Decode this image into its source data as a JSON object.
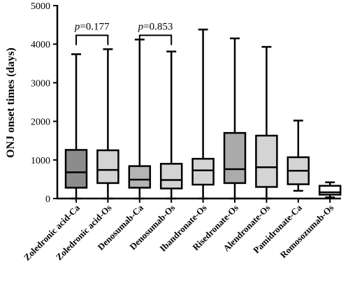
{
  "chart_data": {
    "type": "boxplot",
    "ylabel": "ONJ onset times (days)",
    "ylim": [
      0,
      5000
    ],
    "yticks": [
      0,
      1000,
      2000,
      3000,
      4000,
      5000
    ],
    "categories": [
      "Zoledronic acid-Ca",
      "Zoledronic acid-Os",
      "Denosumab-Ca",
      "Denosumab-Os",
      "Ibandronate-Os",
      "Risedronate-Os",
      "Alendronate-Os",
      "Pamidronate-Ca",
      "Romosozumab-Os"
    ],
    "boxes": [
      {
        "min": 0,
        "q1": 280,
        "median": 680,
        "q3": 1260,
        "max": 3740,
        "fill": "#8c8c8c"
      },
      {
        "min": 0,
        "q1": 400,
        "median": 740,
        "q3": 1250,
        "max": 3870,
        "fill": "#d4d4d4"
      },
      {
        "min": 0,
        "q1": 280,
        "median": 490,
        "q3": 840,
        "max": 4120,
        "fill": "#b5b5b5"
      },
      {
        "min": 0,
        "q1": 260,
        "median": 480,
        "q3": 900,
        "max": 3810,
        "fill": "#d4d4d4"
      },
      {
        "min": 0,
        "q1": 360,
        "median": 730,
        "q3": 1030,
        "max": 4380,
        "fill": "#d4d4d4"
      },
      {
        "min": 0,
        "q1": 400,
        "median": 760,
        "q3": 1700,
        "max": 4150,
        "fill": "#ababab"
      },
      {
        "min": 0,
        "q1": 300,
        "median": 810,
        "q3": 1630,
        "max": 3930,
        "fill": "#d4d4d4"
      },
      {
        "min": 200,
        "q1": 370,
        "median": 720,
        "q3": 1070,
        "max": 2020,
        "fill": "#d4d4d4"
      },
      {
        "min": 30,
        "q1": 100,
        "median": 160,
        "q3": 330,
        "max": 420,
        "fill": "#ffffff"
      }
    ],
    "annotations": [
      {
        "text": "p=0.177",
        "p": "p",
        "value": "=0.177",
        "from": 0,
        "to": 1,
        "y": 4230
      },
      {
        "text": "p=0.853",
        "p": "p",
        "value": "=0.853",
        "from": 2,
        "to": 3,
        "y": 4230
      }
    ],
    "grid": false,
    "legend": "none"
  }
}
